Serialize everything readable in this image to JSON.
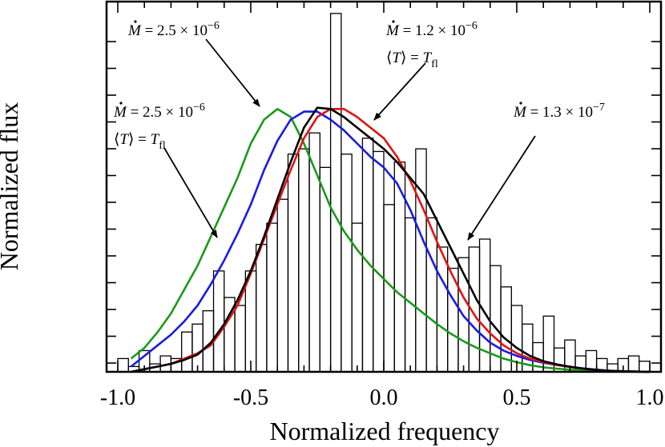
{
  "chart_data": {
    "type": "line",
    "xlabel": "Normalized frequency",
    "ylabel": "Normalized flux",
    "xlim": [
      -1.0,
      1.0
    ],
    "ylim": [
      0,
      1.0
    ],
    "x_ticks": [
      -1.0,
      -0.5,
      0.0,
      0.5,
      1.0
    ],
    "x_tick_labels": [
      "-1.0",
      "-0.5",
      "0.0",
      "0.5",
      "1.0"
    ],
    "grid": false,
    "histogram": {
      "edges": [
        -1.0,
        -0.96,
        -0.92,
        -0.88,
        -0.84,
        -0.8,
        -0.76,
        -0.72,
        -0.68,
        -0.64,
        -0.6,
        -0.56,
        -0.52,
        -0.48,
        -0.44,
        -0.4,
        -0.36,
        -0.32,
        -0.28,
        -0.24,
        -0.2,
        -0.16,
        -0.12,
        -0.08,
        -0.04,
        0.0,
        0.04,
        0.08,
        0.12,
        0.16,
        0.2,
        0.24,
        0.28,
        0.32,
        0.36,
        0.4,
        0.44,
        0.48,
        0.52,
        0.56,
        0.6,
        0.64,
        0.68,
        0.72,
        0.76,
        0.8,
        0.84,
        0.88,
        0.92,
        0.96,
        1.0
      ],
      "values": [
        0.05,
        0.02,
        0.08,
        0.03,
        0.06,
        0.05,
        0.15,
        0.18,
        0.23,
        0.38,
        0.28,
        0.25,
        0.38,
        0.48,
        0.56,
        0.65,
        0.82,
        0.84,
        0.9,
        0.77,
        1.35,
        0.82,
        0.56,
        0.88,
        0.83,
        0.63,
        0.79,
        0.58,
        0.84,
        0.58,
        0.47,
        0.39,
        0.43,
        0.47,
        0.5,
        0.4,
        0.32,
        0.25,
        0.18,
        0.11,
        0.21,
        0.09,
        0.12,
        0.06,
        0.08,
        0.05,
        0.03,
        0.05,
        0.06,
        0.04
      ]
    },
    "series": [
      {
        "color": "#1a9a1a",
        "x": [
          -0.95,
          -0.9,
          -0.85,
          -0.8,
          -0.75,
          -0.7,
          -0.65,
          -0.6,
          -0.55,
          -0.5,
          -0.45,
          -0.4,
          -0.35,
          -0.3,
          -0.25,
          -0.2,
          -0.15,
          -0.1,
          -0.05,
          0.0,
          0.05,
          0.1,
          0.15,
          0.2,
          0.25,
          0.3,
          0.35,
          0.4,
          0.45,
          0.5,
          0.55,
          0.6,
          0.65,
          0.7,
          0.75,
          0.8,
          0.85,
          0.9,
          0.95,
          1.0
        ],
        "y": [
          0.05,
          0.09,
          0.15,
          0.22,
          0.31,
          0.4,
          0.51,
          0.62,
          0.73,
          0.86,
          0.95,
          0.99,
          0.96,
          0.86,
          0.74,
          0.62,
          0.53,
          0.46,
          0.4,
          0.35,
          0.3,
          0.26,
          0.22,
          0.18,
          0.145,
          0.115,
          0.09,
          0.07,
          0.05,
          0.036,
          0.025,
          0.017,
          0.012,
          0.008,
          0.005,
          0.003,
          0.002,
          0.001,
          0.0005,
          0.0
        ]
      },
      {
        "color": "#1a1ae6",
        "x": [
          -0.95,
          -0.9,
          -0.85,
          -0.8,
          -0.75,
          -0.7,
          -0.65,
          -0.6,
          -0.55,
          -0.5,
          -0.45,
          -0.4,
          -0.35,
          -0.3,
          -0.25,
          -0.2,
          -0.15,
          -0.1,
          -0.05,
          0.0,
          0.05,
          0.1,
          0.15,
          0.2,
          0.25,
          0.3,
          0.35,
          0.4,
          0.45,
          0.5,
          0.55,
          0.6,
          0.65,
          0.7,
          0.75,
          0.8,
          0.85,
          0.9,
          0.95,
          1.0
        ],
        "y": [
          0.02,
          0.06,
          0.1,
          0.14,
          0.19,
          0.25,
          0.33,
          0.42,
          0.52,
          0.63,
          0.76,
          0.87,
          0.95,
          0.98,
          0.98,
          0.95,
          0.91,
          0.86,
          0.81,
          0.77,
          0.71,
          0.61,
          0.49,
          0.38,
          0.29,
          0.21,
          0.155,
          0.11,
          0.08,
          0.06,
          0.045,
          0.034,
          0.026,
          0.019,
          0.013,
          0.008,
          0.004,
          0.002,
          0.001,
          0.0
        ]
      },
      {
        "color": "#e01414",
        "x": [
          -0.95,
          -0.9,
          -0.85,
          -0.8,
          -0.75,
          -0.7,
          -0.65,
          -0.6,
          -0.55,
          -0.5,
          -0.45,
          -0.4,
          -0.35,
          -0.3,
          -0.25,
          -0.2,
          -0.15,
          -0.1,
          -0.05,
          0.0,
          0.05,
          0.1,
          0.15,
          0.2,
          0.25,
          0.3,
          0.35,
          0.4,
          0.45,
          0.5,
          0.55,
          0.6,
          0.65,
          0.7,
          0.75,
          0.8,
          0.85,
          0.9,
          0.95,
          1.0
        ],
        "y": [
          0.0,
          0.01,
          0.02,
          0.03,
          0.05,
          0.07,
          0.1,
          0.17,
          0.25,
          0.37,
          0.5,
          0.63,
          0.76,
          0.88,
          0.96,
          0.99,
          0.99,
          0.96,
          0.92,
          0.88,
          0.81,
          0.72,
          0.61,
          0.49,
          0.38,
          0.28,
          0.2,
          0.145,
          0.1,
          0.07,
          0.05,
          0.036,
          0.026,
          0.018,
          0.012,
          0.007,
          0.004,
          0.002,
          0.001,
          0.0
        ]
      },
      {
        "color": "#000000",
        "x": [
          -0.95,
          -0.9,
          -0.85,
          -0.8,
          -0.75,
          -0.7,
          -0.65,
          -0.6,
          -0.55,
          -0.5,
          -0.45,
          -0.4,
          -0.35,
          -0.3,
          -0.25,
          -0.2,
          -0.15,
          -0.1,
          -0.05,
          0.0,
          0.05,
          0.1,
          0.15,
          0.2,
          0.25,
          0.3,
          0.35,
          0.4,
          0.45,
          0.5,
          0.55,
          0.6,
          0.65,
          0.7,
          0.75,
          0.8,
          0.85,
          0.9,
          0.95,
          1.0
        ],
        "y": [
          0.0,
          0.01,
          0.02,
          0.03,
          0.045,
          0.065,
          0.11,
          0.18,
          0.27,
          0.38,
          0.51,
          0.65,
          0.79,
          0.92,
          0.995,
          0.99,
          0.96,
          0.92,
          0.88,
          0.84,
          0.79,
          0.73,
          0.67,
          0.57,
          0.47,
          0.37,
          0.27,
          0.19,
          0.13,
          0.09,
          0.06,
          0.04,
          0.028,
          0.019,
          0.012,
          0.007,
          0.004,
          0.002,
          0.001,
          0.0
        ]
      }
    ],
    "annotations": [
      {
        "lines": [
          {
            "md": "M",
            "rest": " = 2.5 × 10",
            "exp": "−6"
          }
        ]
      },
      {
        "lines": [
          {
            "md": "M",
            "rest": " = 1.2 × 10",
            "exp": "−6"
          },
          {
            "angle": true
          }
        ]
      },
      {
        "lines": [
          {
            "md": "M",
            "rest": " = 2.5 × 10",
            "exp": "−6"
          },
          {
            "angle": true
          }
        ]
      },
      {
        "lines": [
          {
            "md": "M",
            "rest": " = 1.3 × 10",
            "exp": "−7"
          }
        ]
      }
    ],
    "angle_text": {
      "open": "⟨",
      "T": "T",
      "close": "⟩",
      "eq": " = ",
      "Tsub": "T",
      "sub": "fl"
    }
  }
}
